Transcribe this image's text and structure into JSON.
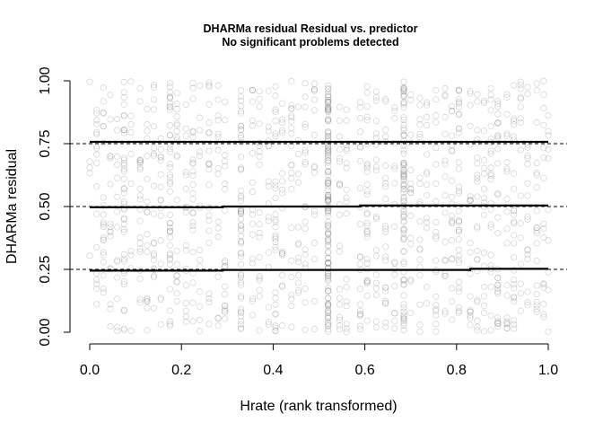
{
  "chart_data": {
    "type": "scatter",
    "title": "DHARMa residual Residual vs. predictor",
    "subtitle": "No significant problems detected",
    "xlabel": "Hrate (rank transformed)",
    "ylabel": "DHARMa residual",
    "xlim": [
      0,
      1
    ],
    "ylim": [
      0,
      1
    ],
    "x_ticks": [
      "0.0",
      "0.2",
      "0.4",
      "0.6",
      "0.8",
      "1.0"
    ],
    "x_tick_values": [
      0,
      0.2,
      0.4,
      0.6,
      0.8,
      1.0
    ],
    "y_ticks": [
      "0.00",
      "0.25",
      "0.50",
      "0.75",
      "1.00"
    ],
    "y_tick_values": [
      0,
      0.25,
      0.5,
      0.75,
      1.0
    ],
    "reference_lines": [
      0.25,
      0.5,
      0.75
    ],
    "quantile_lines": [
      {
        "quantile": 0.25,
        "x": [
          0,
          0.29,
          0.29,
          0.83,
          0.83,
          1.0
        ],
        "y": [
          0.245,
          0.245,
          0.248,
          0.248,
          0.252,
          0.252
        ]
      },
      {
        "quantile": 0.5,
        "x": [
          0,
          0.29,
          0.29,
          0.59,
          0.59,
          1.0
        ],
        "y": [
          0.497,
          0.497,
          0.5,
          0.5,
          0.504,
          0.504
        ]
      },
      {
        "quantile": 0.75,
        "x": [
          0,
          1.0
        ],
        "y": [
          0.757,
          0.757
        ]
      }
    ],
    "columns": [
      {
        "x": 0.0,
        "n": 5
      },
      {
        "x": 0.015,
        "n": 18
      },
      {
        "x": 0.03,
        "n": 22
      },
      {
        "x": 0.045,
        "n": 16
      },
      {
        "x": 0.06,
        "n": 14
      },
      {
        "x": 0.075,
        "n": 40
      },
      {
        "x": 0.09,
        "n": 10
      },
      {
        "x": 0.11,
        "n": 22
      },
      {
        "x": 0.125,
        "n": 18
      },
      {
        "x": 0.14,
        "n": 20
      },
      {
        "x": 0.155,
        "n": 16
      },
      {
        "x": 0.175,
        "n": 42
      },
      {
        "x": 0.19,
        "n": 20
      },
      {
        "x": 0.21,
        "n": 18
      },
      {
        "x": 0.225,
        "n": 24
      },
      {
        "x": 0.24,
        "n": 14
      },
      {
        "x": 0.26,
        "n": 22
      },
      {
        "x": 0.28,
        "n": 16
      },
      {
        "x": 0.295,
        "n": 20
      },
      {
        "x": 0.33,
        "n": 55
      },
      {
        "x": 0.355,
        "n": 18
      },
      {
        "x": 0.37,
        "n": 20
      },
      {
        "x": 0.39,
        "n": 16
      },
      {
        "x": 0.405,
        "n": 30
      },
      {
        "x": 0.42,
        "n": 18
      },
      {
        "x": 0.44,
        "n": 22
      },
      {
        "x": 0.455,
        "n": 14
      },
      {
        "x": 0.47,
        "n": 20
      },
      {
        "x": 0.49,
        "n": 16
      },
      {
        "x": 0.52,
        "n": 140
      },
      {
        "x": 0.545,
        "n": 20
      },
      {
        "x": 0.56,
        "n": 18
      },
      {
        "x": 0.59,
        "n": 22
      },
      {
        "x": 0.605,
        "n": 30
      },
      {
        "x": 0.625,
        "n": 20
      },
      {
        "x": 0.645,
        "n": 24
      },
      {
        "x": 0.665,
        "n": 18
      },
      {
        "x": 0.685,
        "n": 90
      },
      {
        "x": 0.7,
        "n": 16
      },
      {
        "x": 0.72,
        "n": 20
      },
      {
        "x": 0.735,
        "n": 14
      },
      {
        "x": 0.755,
        "n": 22
      },
      {
        "x": 0.775,
        "n": 18
      },
      {
        "x": 0.79,
        "n": 20
      },
      {
        "x": 0.805,
        "n": 35
      },
      {
        "x": 0.83,
        "n": 20
      },
      {
        "x": 0.845,
        "n": 22
      },
      {
        "x": 0.86,
        "n": 18
      },
      {
        "x": 0.875,
        "n": 24
      },
      {
        "x": 0.89,
        "n": 30
      },
      {
        "x": 0.91,
        "n": 20
      },
      {
        "x": 0.925,
        "n": 26
      },
      {
        "x": 0.94,
        "n": 16
      },
      {
        "x": 0.955,
        "n": 18
      },
      {
        "x": 0.975,
        "n": 20
      },
      {
        "x": 0.99,
        "n": 16
      },
      {
        "x": 1.0,
        "n": 10
      }
    ],
    "point_color": "#7f7f7f",
    "quantile_line_color": "#000000",
    "grid": false
  }
}
